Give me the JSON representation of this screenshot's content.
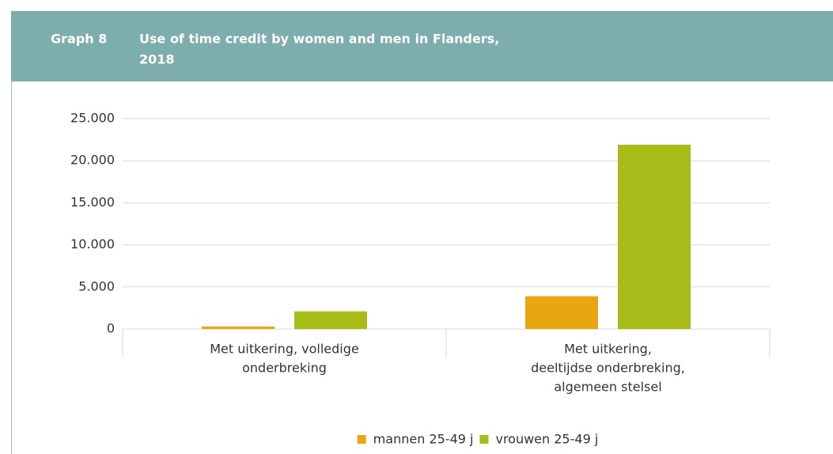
{
  "chart_data": {
    "type": "bar",
    "label": "Graph 8",
    "title": [
      "Use of time credit by women and men in Flanders,",
      "2018"
    ],
    "categories": [
      [
        "Met uitkering, volledige",
        "onderbreking"
      ],
      [
        "Met uitkering,",
        "deeltijdse onderbreking,",
        "algemeen stelsel"
      ]
    ],
    "series": [
      {
        "name": "mannen 25-49 j",
        "color": "#e8a711",
        "values": [
          300,
          3900
        ]
      },
      {
        "name": "vrouwen 25-49 j",
        "color": "#a8bd1a",
        "values": [
          2100,
          21900
        ]
      }
    ],
    "ylim": [
      0,
      25000
    ],
    "yticks": [
      0,
      {
        "value": 5000,
        "label": "5.000"
      },
      {
        "value": 10000,
        "label": "10.000"
      },
      {
        "value": 15000,
        "label": "15.000"
      },
      {
        "value": 20000,
        "label": "20.000"
      },
      {
        "value": 25000,
        "label": "25.000"
      }
    ],
    "grid": true,
    "legend": "bottom"
  }
}
